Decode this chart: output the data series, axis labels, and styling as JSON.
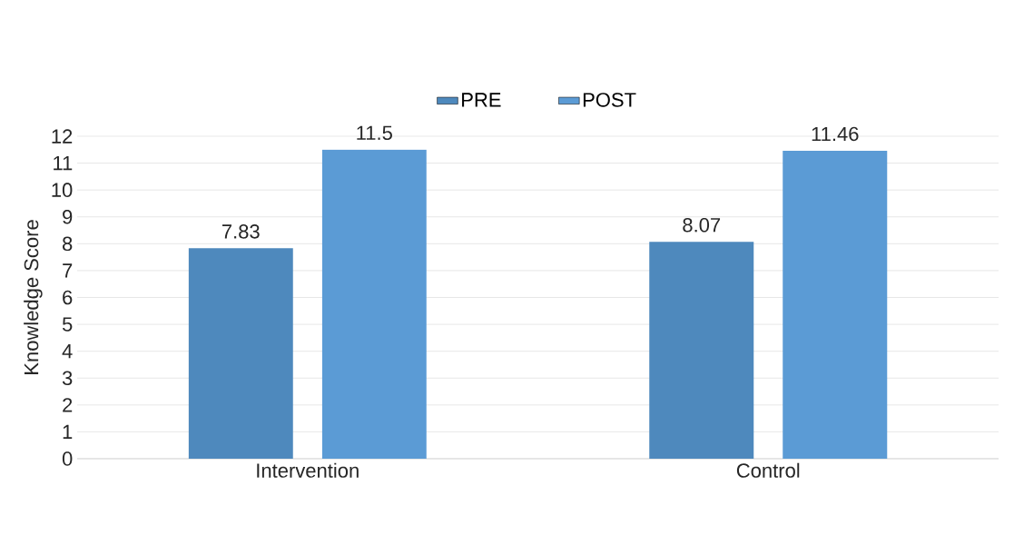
{
  "chart_data": {
    "type": "bar",
    "ylabel": "Knowledge Score",
    "categories": [
      "Intervention",
      "Control"
    ],
    "series": [
      {
        "name": "PRE",
        "color": "#4e89bd",
        "values": [
          7.83,
          8.07
        ]
      },
      {
        "name": "POST",
        "color": "#5b9bd5",
        "values": [
          11.5,
          11.46
        ]
      }
    ],
    "ylim": [
      0,
      12
    ],
    "yticks": [
      0,
      1,
      2,
      3,
      4,
      5,
      6,
      7,
      8,
      9,
      10,
      11,
      12
    ],
    "grid": "y",
    "legend": "top",
    "data_labels": true
  }
}
